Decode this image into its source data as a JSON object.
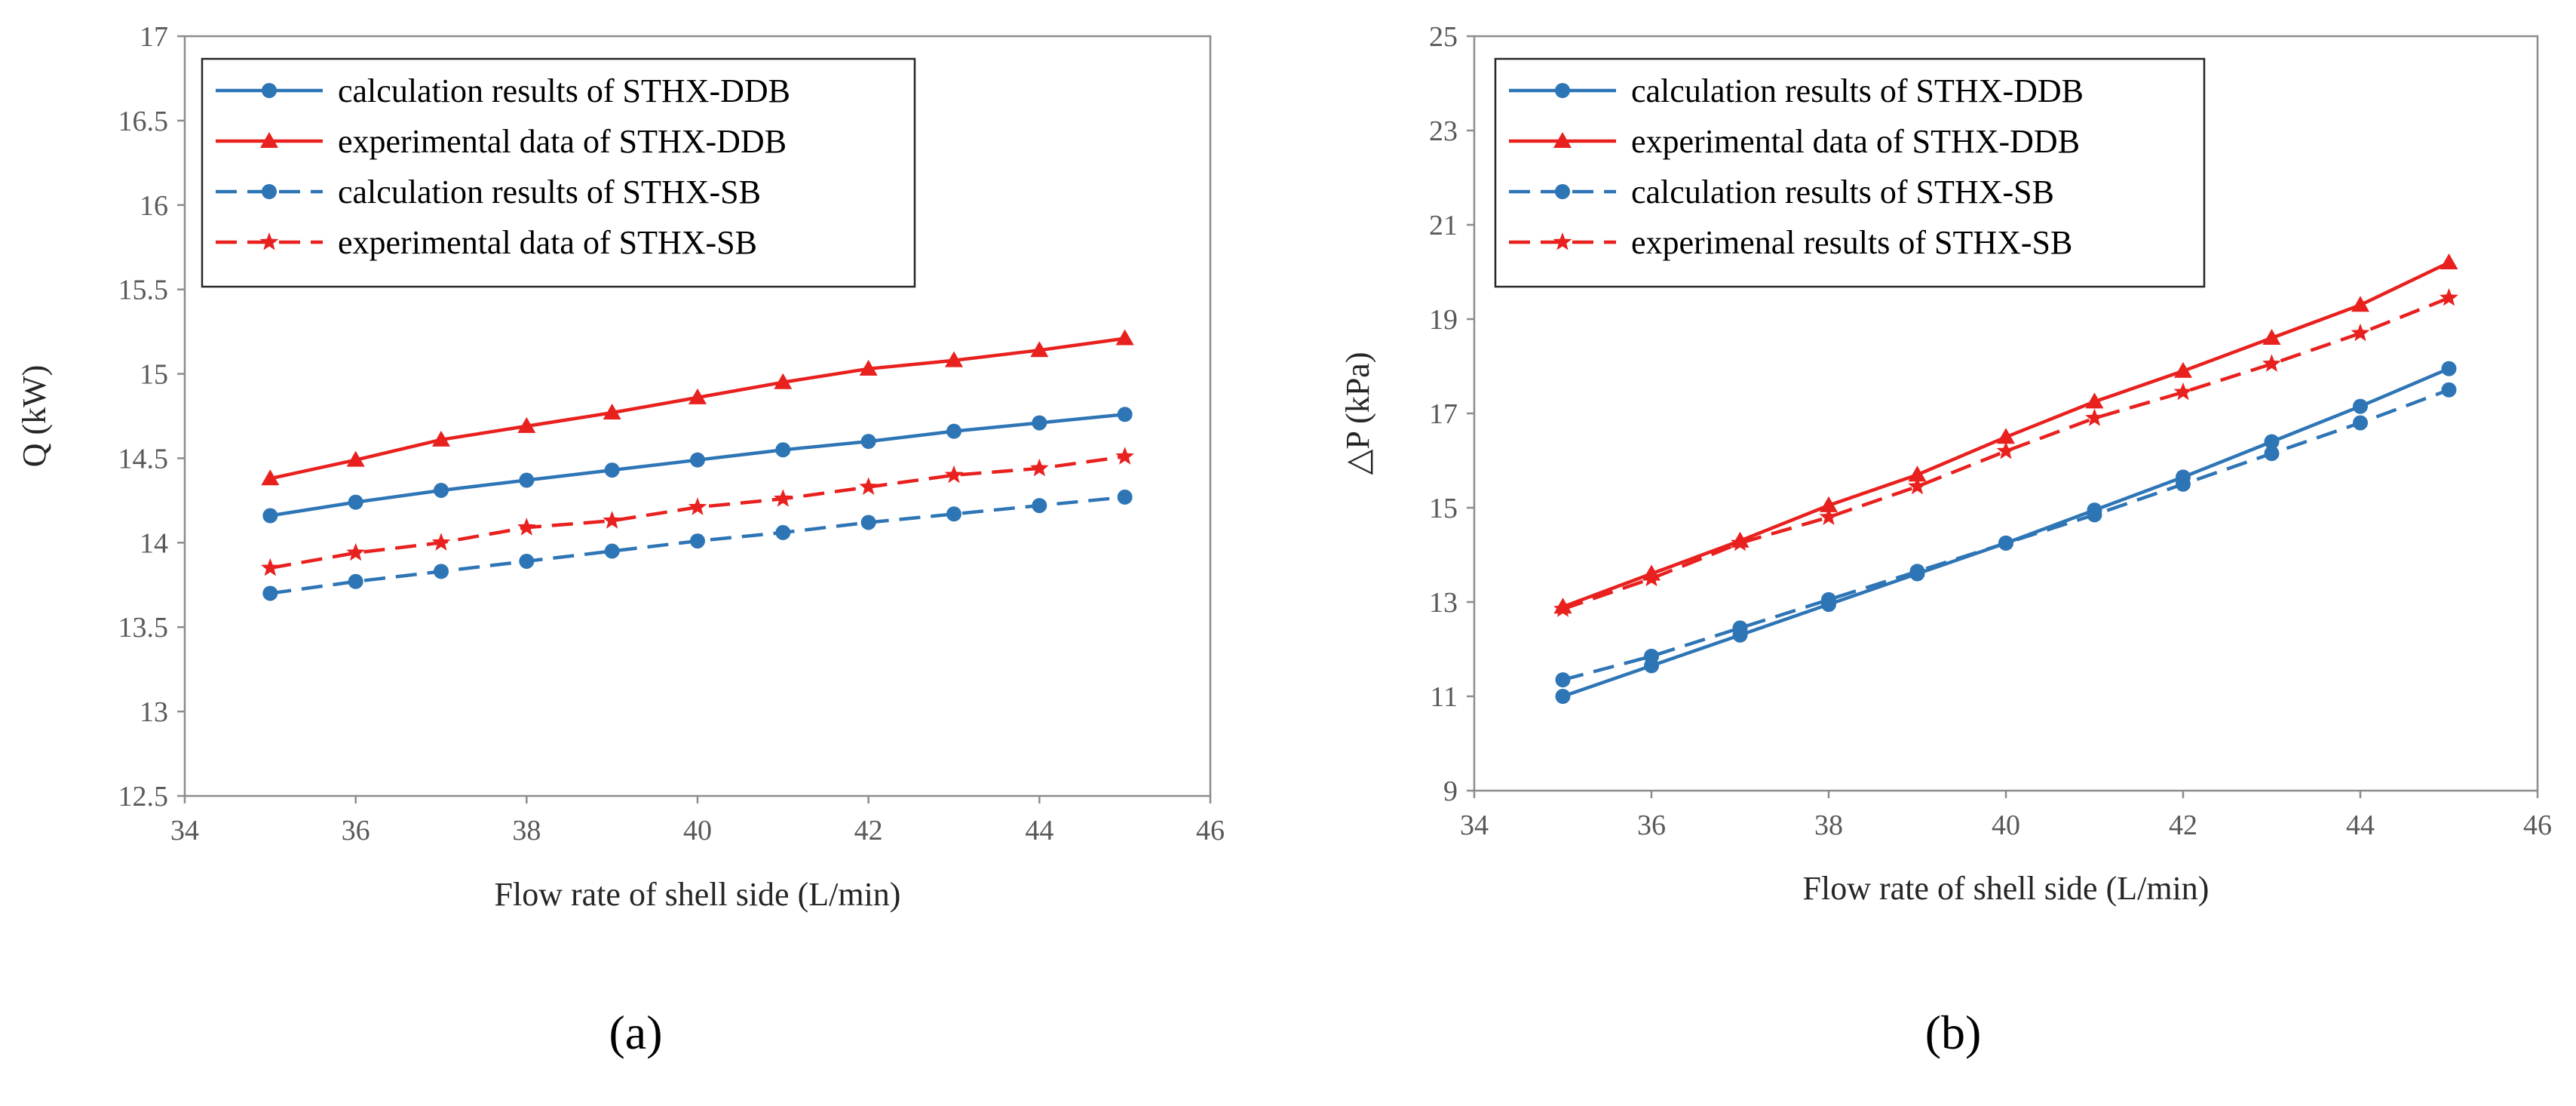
{
  "chart_data": [
    {
      "type": "line",
      "panel_label": "(a)",
      "xlabel": "Flow rate of shell side (L/min)",
      "ylabel": "Q (kW)",
      "xlim": [
        34,
        46
      ],
      "ylim": [
        12.5,
        17
      ],
      "xticks": [
        "34",
        "36",
        "38",
        "40",
        "42",
        "44",
        "46"
      ],
      "yticks": [
        "12.5",
        "13",
        "13.5",
        "14",
        "14.5",
        "15",
        "15.5",
        "16",
        "16.5",
        "17"
      ],
      "legend_position": "top-left",
      "grid": false,
      "x": [
        35,
        36,
        37,
        38,
        39,
        40,
        41,
        42,
        43,
        44,
        45
      ],
      "series": [
        {
          "name": "calculation results of STHX-DDB",
          "color": "#2E75B6",
          "dash": "solid",
          "marker": "circle",
          "values": [
            14.16,
            14.24,
            14.31,
            14.37,
            14.43,
            14.49,
            14.55,
            14.6,
            14.66,
            14.71,
            14.76
          ]
        },
        {
          "name": "experimental data of STHX-DDB",
          "color": "#E8201E",
          "dash": "solid",
          "marker": "triangle",
          "values": [
            14.38,
            14.49,
            14.61,
            14.69,
            14.77,
            14.86,
            14.95,
            15.03,
            15.08,
            15.14,
            15.21
          ]
        },
        {
          "name": "calculation results of STHX-SB",
          "color": "#2E75B6",
          "dash": "dashed",
          "marker": "circle",
          "values": [
            13.7,
            13.77,
            13.83,
            13.89,
            13.95,
            14.01,
            14.06,
            14.12,
            14.17,
            14.22,
            14.27
          ]
        },
        {
          "name": "experimental data of STHX-SB",
          "color": "#E8201E",
          "dash": "dashed",
          "marker": "star",
          "values": [
            13.85,
            13.94,
            14.0,
            14.09,
            14.13,
            14.21,
            14.26,
            14.33,
            14.4,
            14.44,
            14.51
          ]
        }
      ]
    },
    {
      "type": "line",
      "panel_label": "(b)",
      "xlabel": "Flow rate of shell side (L/min)",
      "ylabel": "△P (kPa)",
      "xlim": [
        34,
        46
      ],
      "ylim": [
        9,
        25
      ],
      "xticks": [
        "34",
        "36",
        "38",
        "40",
        "42",
        "44",
        "46"
      ],
      "yticks": [
        "9",
        "11",
        "13",
        "15",
        "17",
        "19",
        "21",
        "23",
        "25"
      ],
      "legend_position": "top-left",
      "grid": false,
      "x": [
        35,
        36,
        37,
        38,
        39,
        40,
        41,
        42,
        43,
        44,
        45
      ],
      "series": [
        {
          "name": "calculation results of STHX-DDB",
          "color": "#2E75B6",
          "dash": "solid",
          "marker": "circle",
          "values": [
            11.0,
            11.65,
            12.3,
            12.95,
            13.6,
            14.25,
            14.95,
            15.65,
            16.4,
            17.15,
            17.95
          ]
        },
        {
          "name": "experimental data of STHX-DDB",
          "color": "#E8201E",
          "dash": "solid",
          "marker": "triangle",
          "values": [
            12.9,
            13.6,
            14.3,
            15.05,
            15.7,
            16.5,
            17.25,
            17.9,
            18.6,
            19.3,
            20.2
          ]
        },
        {
          "name": "calculation results of STHX-SB",
          "color": "#2E75B6",
          "dash": "dashed",
          "marker": "circle",
          "values": [
            11.35,
            11.85,
            12.45,
            13.05,
            13.65,
            14.25,
            14.85,
            15.5,
            16.15,
            16.8,
            17.5
          ]
        },
        {
          "name": "experimenal results of STHX-SB",
          "color": "#E8201E",
          "dash": "dashed",
          "marker": "star",
          "values": [
            12.85,
            13.5,
            14.25,
            14.8,
            15.45,
            16.2,
            16.9,
            17.45,
            18.05,
            18.7,
            19.45
          ]
        }
      ]
    }
  ]
}
